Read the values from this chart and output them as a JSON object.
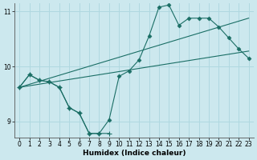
{
  "xlabel": "Humidex (Indice chaleur)",
  "xlim": [
    -0.5,
    23.5
  ],
  "ylim": [
    8.7,
    11.15
  ],
  "yticks": [
    9,
    10,
    11
  ],
  "xticks": [
    0,
    1,
    2,
    3,
    4,
    5,
    6,
    7,
    8,
    9,
    10,
    11,
    12,
    13,
    14,
    15,
    16,
    17,
    18,
    19,
    20,
    21,
    22,
    23
  ],
  "bg_color": "#cce8ee",
  "line_color": "#1a6e65",
  "grid_color": "#b0d8e0",
  "lines": [
    {
      "x": [
        0,
        1,
        2,
        3,
        4,
        5,
        6,
        7,
        8,
        9
      ],
      "y": [
        9.62,
        9.85,
        9.75,
        9.72,
        9.62,
        9.25,
        9.15,
        8.78,
        8.78,
        8.78
      ],
      "marker": "+"
    },
    {
      "x": [
        0,
        1,
        2,
        3,
        4,
        5,
        6,
        7,
        8,
        9,
        10,
        11,
        12,
        13,
        14,
        15,
        16,
        17,
        18,
        19,
        20,
        21,
        22,
        23
      ],
      "y": [
        9.62,
        9.85,
        9.75,
        9.72,
        9.62,
        9.25,
        9.15,
        8.78,
        8.78,
        9.03,
        9.82,
        9.92,
        10.12,
        10.55,
        11.08,
        11.12,
        10.75,
        10.88,
        10.88,
        10.88,
        10.72,
        10.52,
        10.32,
        10.15
      ],
      "marker": "D"
    },
    {
      "x": [
        0,
        23
      ],
      "y": [
        9.62,
        10.28
      ],
      "marker": null
    },
    {
      "x": [
        0,
        23
      ],
      "y": [
        9.62,
        10.88
      ],
      "marker": null
    }
  ]
}
